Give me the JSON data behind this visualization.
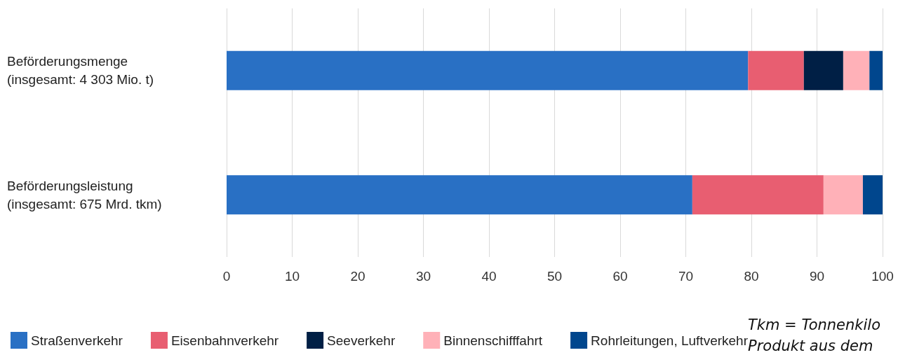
{
  "chart_data": {
    "type": "bar",
    "orientation": "horizontal",
    "stacked": true,
    "categories": [
      "Beförderungsmenge\n(insgesamt: 4 303 Mio. t)",
      "Beförderungsleistung\n(insgesamt: 675 Mrd. tkm)"
    ],
    "series": [
      {
        "name": "Straßenverkehr",
        "color": "#2970c4",
        "values": [
          79.5,
          71
        ]
      },
      {
        "name": "Eisenbahnverkehr",
        "color": "#e85e71",
        "values": [
          8.5,
          20
        ]
      },
      {
        "name": "Seeverkehr",
        "color": "#001f45",
        "values": [
          6,
          0
        ]
      },
      {
        "name": "Binnenschifffahrt",
        "color": "#ffb1b8",
        "values": [
          4,
          6
        ]
      },
      {
        "name": "Rohrleitungen, Luftverkehr",
        "color": "#00468d",
        "values": [
          2,
          3
        ]
      }
    ],
    "xlim": [
      0,
      100
    ],
    "xticks": [
      0,
      10,
      20,
      30,
      40,
      50,
      60,
      70,
      80,
      90,
      100
    ],
    "grid": "x",
    "legend": "bottom",
    "annotations": [
      "Tkm = Tonnenkilo",
      "Produkt aus dem"
    ]
  }
}
